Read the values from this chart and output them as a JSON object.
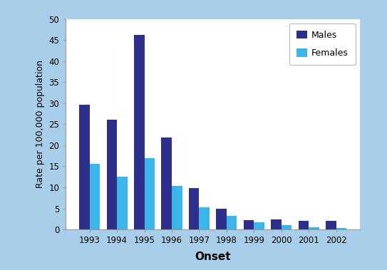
{
  "years": [
    1993,
    1994,
    1995,
    1996,
    1997,
    1998,
    1999,
    2000,
    2001,
    2002
  ],
  "males": [
    29.7,
    26.1,
    46.2,
    21.8,
    9.9,
    5.0,
    2.3,
    2.4,
    2.0,
    2.1
  ],
  "females": [
    15.6,
    12.5,
    16.9,
    10.3,
    5.2,
    3.2,
    1.7,
    1.0,
    0.6,
    0.4
  ],
  "male_color": "#2E2E8B",
  "female_color": "#3BB5E8",
  "background_outer": "#A8CEEA",
  "background_inner": "#FFFFFF",
  "xlabel": "Onset",
  "ylabel": "Rate per 100,000 population",
  "ylim": [
    0,
    50
  ],
  "yticks": [
    0,
    5,
    10,
    15,
    20,
    25,
    30,
    35,
    40,
    45,
    50
  ],
  "legend_labels": [
    "Males",
    "Females"
  ],
  "bar_width": 0.38,
  "spine_color": "#999999",
  "tick_label_fontsize": 8.5,
  "ylabel_fontsize": 9,
  "xlabel_fontsize": 11,
  "legend_fontsize": 9
}
